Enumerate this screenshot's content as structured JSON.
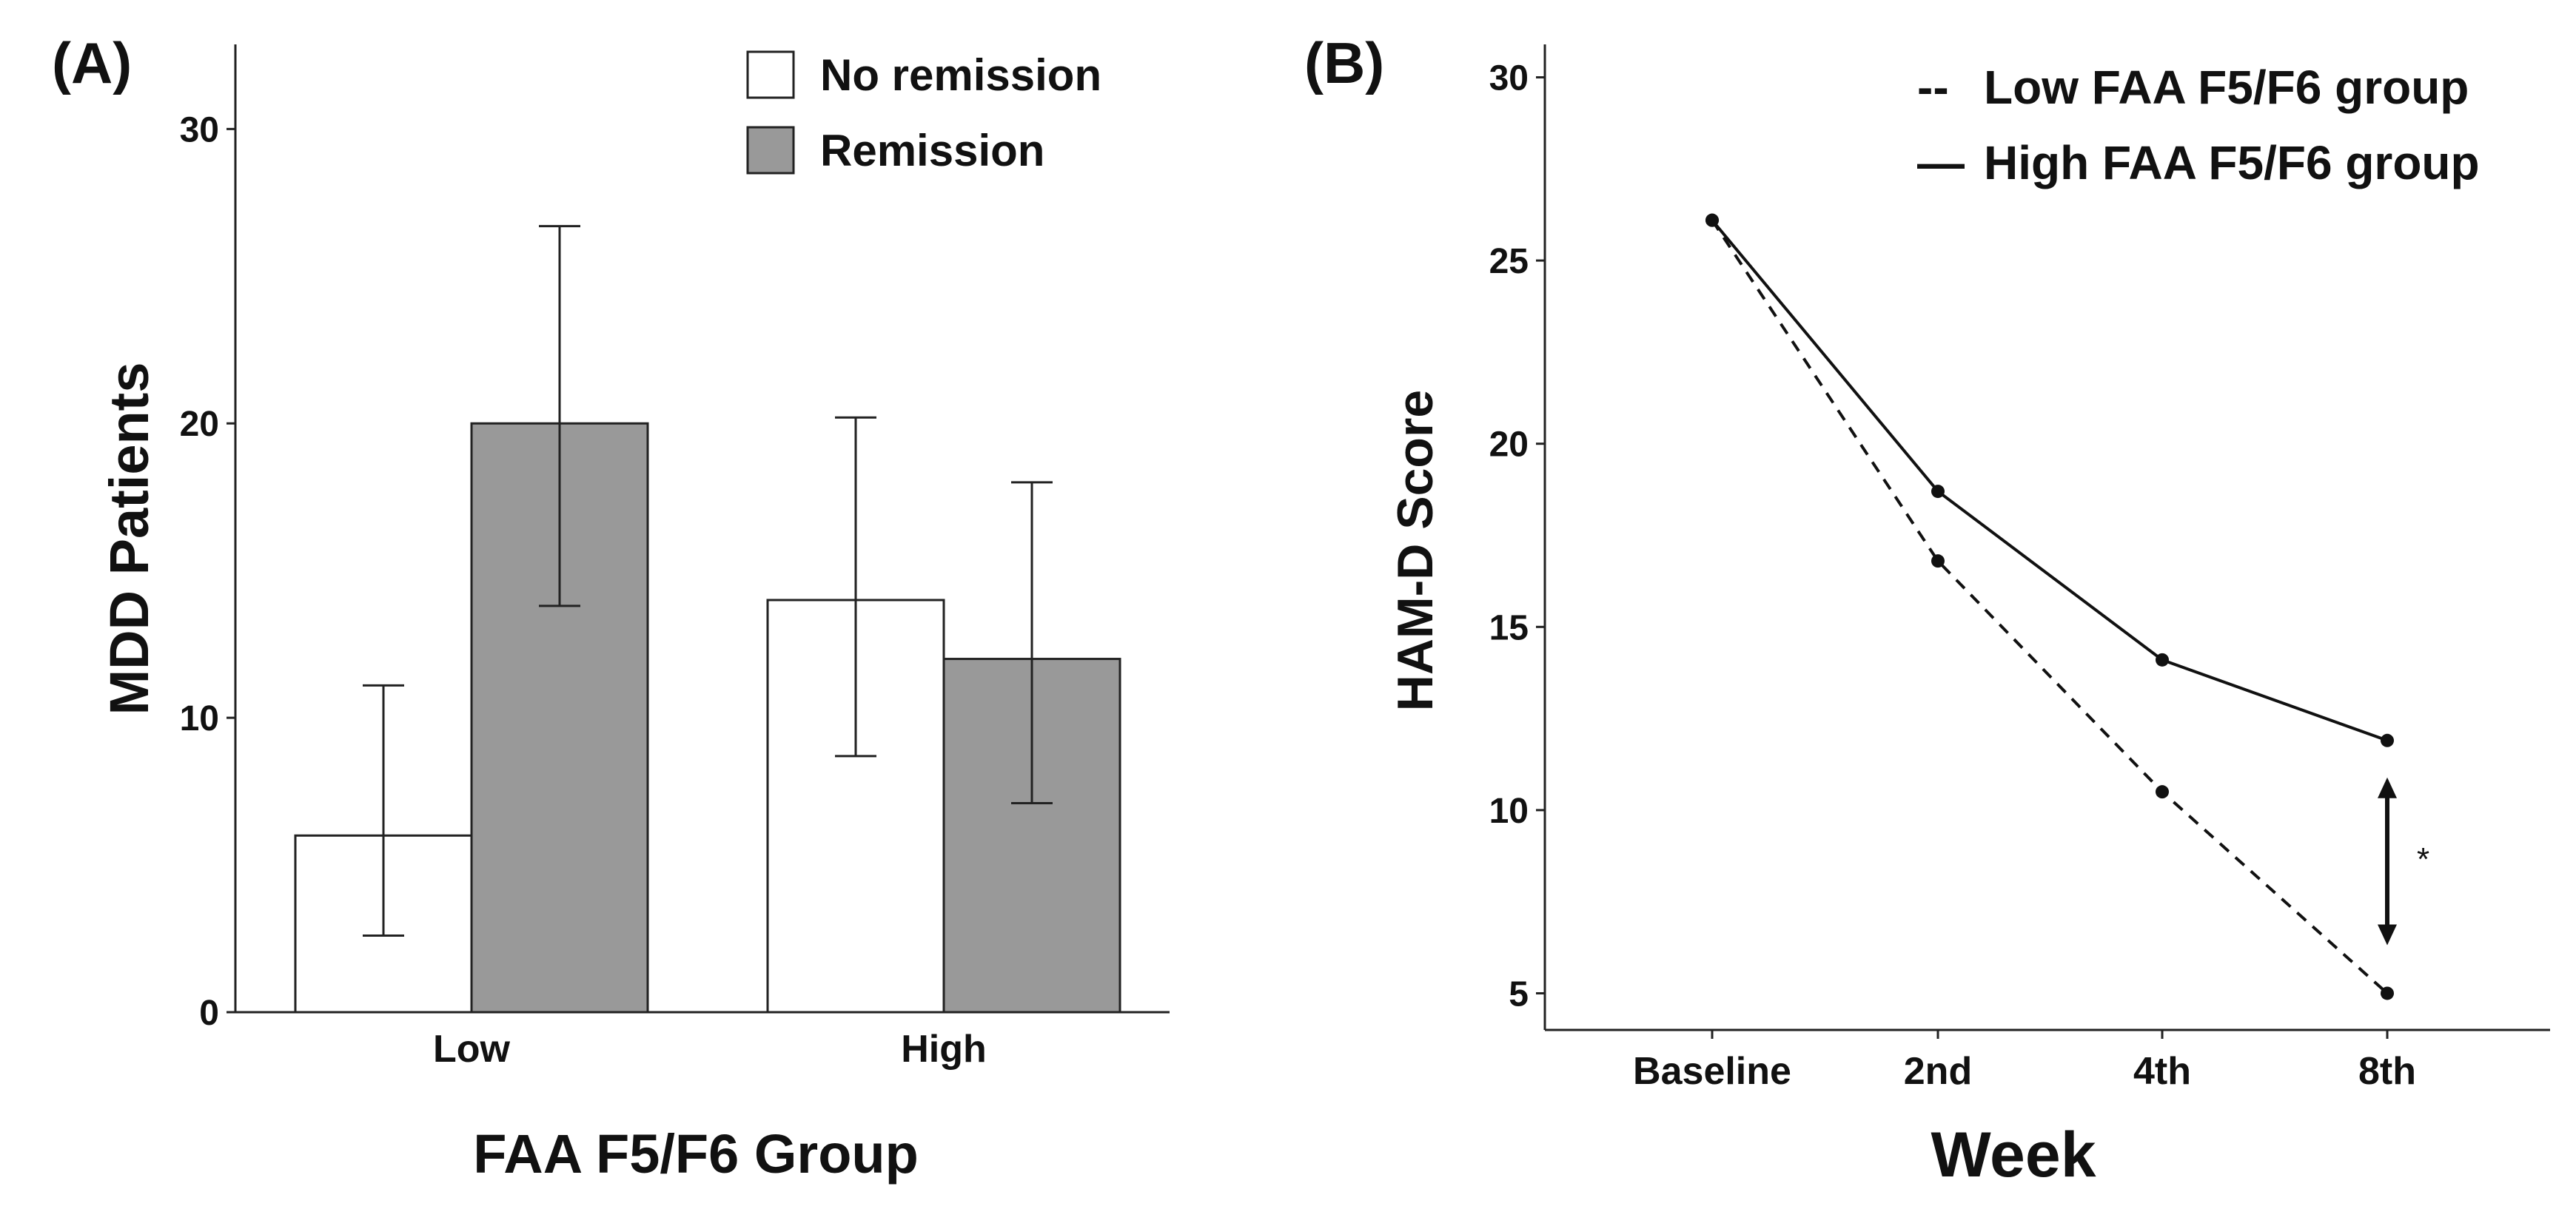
{
  "chart_data": [
    {
      "type": "bar",
      "panel_label": "(A)",
      "title": "",
      "xlabel": "FAA F5/F6 Group",
      "ylabel": "MDD Patients",
      "categories": [
        "Low",
        "High"
      ],
      "ylim": [
        0,
        33
      ],
      "yticks": [
        0,
        10,
        20,
        30
      ],
      "legend_position": "top-right",
      "series": [
        {
          "name": "No remission",
          "color": "#ffffff",
          "values": [
            6,
            14
          ],
          "error_low": [
            2.6,
            8.7
          ],
          "error_high": [
            11.1,
            20.2
          ]
        },
        {
          "name": "Remission",
          "color": "#999999",
          "values": [
            20,
            12
          ],
          "error_low": [
            13.8,
            7.1
          ],
          "error_high": [
            26.7,
            18.0
          ]
        }
      ]
    },
    {
      "type": "line",
      "panel_label": "(B)",
      "title": "",
      "xlabel": "Week",
      "ylabel": "HAM-D Score",
      "categories": [
        "Baseline",
        "2nd",
        "4th",
        "8th"
      ],
      "ylim": [
        4,
        31
      ],
      "yticks": [
        5,
        10,
        15,
        20,
        25,
        30
      ],
      "legend_position": "top-right",
      "series": [
        {
          "name": "Low FAA F5/F6 group",
          "legend_symbol": "--",
          "line_style": "dashed",
          "values": [
            26.1,
            16.8,
            10.5,
            5.0
          ]
        },
        {
          "name": "High FAA F5/F6 group",
          "legend_symbol": "—",
          "line_style": "solid",
          "values": [
            26.1,
            18.7,
            14.1,
            11.9
          ]
        }
      ],
      "annotation": {
        "text": "*",
        "category": "8th",
        "from": 5.0,
        "to": 11.9
      }
    }
  ]
}
